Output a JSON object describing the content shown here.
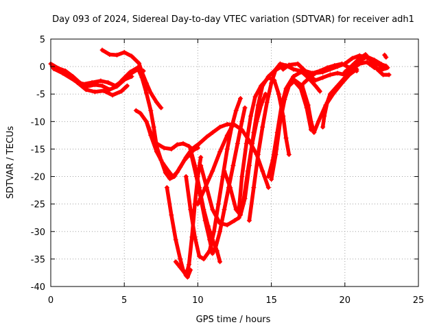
{
  "chart_data": {
    "type": "scatter",
    "title": "Day 093 of 2024, Sidereal Day-to-day VTEC variation (SDTVAR) for receiver adh1",
    "xlabel": "GPS time / hours",
    "ylabel": "SDTVAR / TECUs",
    "xlim": [
      0,
      25
    ],
    "ylim": [
      -40,
      5
    ],
    "xticks": [
      "0",
      "5",
      "10",
      "15",
      "20",
      "25"
    ],
    "yticks": [
      "5",
      "0",
      "-5",
      "-10",
      "-15",
      "-20",
      "-25",
      "-30",
      "-35",
      "-40"
    ],
    "grid": true,
    "marker": "+",
    "colors": {
      "series": "#ff0000",
      "grid": "#a0a0a0",
      "axis": "#000000"
    },
    "series": [
      {
        "points": [
          [
            0.0,
            0.5
          ],
          [
            0.5,
            -0.3
          ],
          [
            1.0,
            -0.8
          ],
          [
            1.5,
            -1.8
          ],
          [
            2.0,
            -3.0
          ],
          [
            2.5,
            -3.6
          ],
          [
            3.0,
            -3.3
          ],
          [
            3.5,
            -3.5
          ],
          [
            4.0,
            -4.2
          ],
          [
            4.5,
            -3.6
          ],
          [
            5.0,
            -2.4
          ],
          [
            5.5,
            -1.2
          ],
          [
            6.0,
            -0.4
          ],
          [
            6.3,
            -0.8
          ]
        ]
      },
      {
        "points": [
          [
            0.1,
            0.0
          ],
          [
            0.6,
            -0.6
          ],
          [
            1.2,
            -1.6
          ],
          [
            1.8,
            -2.9
          ],
          [
            2.4,
            -4.2
          ],
          [
            3.0,
            -4.6
          ],
          [
            3.6,
            -4.4
          ],
          [
            4.2,
            -5.2
          ],
          [
            4.8,
            -4.5
          ],
          [
            5.2,
            -3.5
          ]
        ]
      },
      {
        "points": [
          [
            0.2,
            -0.4
          ],
          [
            0.8,
            -1.2
          ],
          [
            1.6,
            -2.5
          ],
          [
            2.2,
            -3.2
          ],
          [
            2.8,
            -2.9
          ],
          [
            3.4,
            -2.6
          ],
          [
            3.9,
            -2.9
          ],
          [
            4.4,
            -3.5
          ],
          [
            4.9,
            -2.5
          ],
          [
            5.5,
            -1.8
          ]
        ]
      },
      {
        "points": [
          [
            3.5,
            3.0
          ],
          [
            4.0,
            2.2
          ],
          [
            4.5,
            2.1
          ],
          [
            5.0,
            2.6
          ],
          [
            5.5,
            1.9
          ],
          [
            6.0,
            0.6
          ],
          [
            6.2,
            -1.0
          ],
          [
            6.5,
            -3.0
          ],
          [
            6.8,
            -4.8
          ],
          [
            7.2,
            -6.5
          ],
          [
            7.5,
            -7.5
          ]
        ]
      },
      {
        "points": [
          [
            4.8,
            -2.6
          ],
          [
            5.4,
            -1.0
          ],
          [
            5.9,
            -0.2
          ],
          [
            6.2,
            -2.0
          ],
          [
            6.5,
            -4.8
          ],
          [
            6.8,
            -8.0
          ],
          [
            7.0,
            -11.0
          ],
          [
            7.2,
            -14.5
          ],
          [
            7.5,
            -17.0
          ],
          [
            7.8,
            -19.3
          ],
          [
            8.1,
            -20.4
          ],
          [
            8.4,
            -20.0
          ],
          [
            8.8,
            -18.3
          ],
          [
            9.2,
            -16.5
          ],
          [
            9.6,
            -15.0
          ],
          [
            10.0,
            -14.2
          ]
        ]
      },
      {
        "points": [
          [
            5.8,
            -8.0
          ],
          [
            6.1,
            -8.5
          ],
          [
            6.5,
            -10.0
          ],
          [
            6.8,
            -12.5
          ],
          [
            7.2,
            -15.5
          ],
          [
            7.6,
            -17.5
          ],
          [
            8.0,
            -19.0
          ],
          [
            8.3,
            -20.0
          ],
          [
            8.6,
            -19.2
          ],
          [
            9.1,
            -17.0
          ],
          [
            9.6,
            -15.5
          ],
          [
            10.1,
            -14.0
          ],
          [
            10.6,
            -12.8
          ],
          [
            11.0,
            -12.0
          ],
          [
            11.5,
            -11.0
          ],
          [
            12.0,
            -10.5
          ],
          [
            12.5,
            -10.6
          ],
          [
            13.0,
            -11.5
          ],
          [
            13.5,
            -13.5
          ],
          [
            14.0,
            -16.0
          ],
          [
            14.4,
            -19.0
          ],
          [
            14.8,
            -22.0
          ]
        ]
      },
      {
        "points": [
          [
            6.5,
            -10.0
          ],
          [
            6.8,
            -12.0
          ],
          [
            7.2,
            -14.0
          ],
          [
            7.7,
            -14.8
          ],
          [
            8.2,
            -15.0
          ],
          [
            8.6,
            -14.2
          ],
          [
            9.0,
            -14.0
          ],
          [
            9.4,
            -14.5
          ],
          [
            9.7,
            -15.2
          ],
          [
            10.0,
            -14.8
          ]
        ]
      },
      {
        "points": [
          [
            7.9,
            -22.0
          ],
          [
            8.2,
            -27.0
          ],
          [
            8.5,
            -31.5
          ],
          [
            8.8,
            -35.0
          ],
          [
            9.0,
            -37.0
          ],
          [
            9.2,
            -38.0
          ],
          [
            9.4,
            -36.0
          ],
          [
            9.6,
            -31.0
          ],
          [
            9.8,
            -25.0
          ],
          [
            10.0,
            -20.0
          ],
          [
            10.2,
            -16.5
          ]
        ]
      },
      {
        "points": [
          [
            8.5,
            -35.5
          ],
          [
            8.8,
            -36.5
          ],
          [
            9.1,
            -37.5
          ],
          [
            9.3,
            -38.3
          ],
          [
            9.5,
            -37.0
          ]
        ]
      },
      {
        "points": [
          [
            9.5,
            -15.0
          ],
          [
            9.8,
            -18.0
          ],
          [
            10.1,
            -22.0
          ],
          [
            10.4,
            -26.0
          ],
          [
            10.7,
            -29.0
          ],
          [
            11.0,
            -31.5
          ],
          [
            11.3,
            -33.5
          ],
          [
            11.5,
            -35.5
          ]
        ]
      },
      {
        "points": [
          [
            9.6,
            -16.5
          ],
          [
            9.9,
            -20.0
          ],
          [
            10.2,
            -24.0
          ],
          [
            10.5,
            -28.0
          ],
          [
            10.8,
            -31.5
          ],
          [
            11.0,
            -34.0
          ],
          [
            11.2,
            -33.0
          ],
          [
            11.5,
            -30.0
          ],
          [
            11.8,
            -26.0
          ],
          [
            12.1,
            -22.0
          ],
          [
            12.4,
            -18.0
          ],
          [
            12.7,
            -14.0
          ],
          [
            13.0,
            -10.0
          ],
          [
            13.2,
            -7.5
          ]
        ]
      },
      {
        "points": [
          [
            9.2,
            -20.0
          ],
          [
            9.5,
            -26.0
          ],
          [
            9.8,
            -31.0
          ],
          [
            10.1,
            -34.5
          ],
          [
            10.4,
            -35.0
          ],
          [
            10.8,
            -33.5
          ],
          [
            11.1,
            -30.0
          ],
          [
            11.4,
            -25.0
          ],
          [
            11.7,
            -20.0
          ],
          [
            12.0,
            -15.0
          ],
          [
            12.3,
            -11.0
          ],
          [
            12.6,
            -8.0
          ],
          [
            12.9,
            -5.8
          ]
        ]
      },
      {
        "points": [
          [
            10.0,
            -25.0
          ],
          [
            10.5,
            -22.0
          ],
          [
            11.0,
            -19.0
          ],
          [
            11.5,
            -15.5
          ],
          [
            12.0,
            -12.5
          ],
          [
            12.4,
            -10.5
          ]
        ]
      },
      {
        "points": [
          [
            10.2,
            -18.0
          ],
          [
            10.6,
            -22.0
          ],
          [
            11.0,
            -26.0
          ],
          [
            11.5,
            -28.5
          ],
          [
            12.0,
            -28.8
          ],
          [
            12.5,
            -28.0
          ],
          [
            12.8,
            -27.5
          ],
          [
            13.1,
            -24.5
          ],
          [
            13.4,
            -19.0
          ],
          [
            13.7,
            -14.0
          ],
          [
            14.0,
            -10.0
          ],
          [
            14.3,
            -7.0
          ],
          [
            14.6,
            -5.0
          ]
        ]
      },
      {
        "points": [
          [
            11.8,
            -19.0
          ],
          [
            12.2,
            -22.0
          ],
          [
            12.6,
            -26.0
          ],
          [
            12.9,
            -27.0
          ],
          [
            13.2,
            -24.0
          ],
          [
            13.5,
            -18.0
          ],
          [
            13.8,
            -12.0
          ],
          [
            14.1,
            -7.0
          ],
          [
            14.4,
            -3.5
          ],
          [
            14.8,
            -1.8
          ],
          [
            15.2,
            -0.8
          ],
          [
            15.7,
            0.0
          ],
          [
            16.2,
            0.2
          ]
        ]
      },
      {
        "points": [
          [
            12.8,
            -26.0
          ],
          [
            13.0,
            -20.0
          ],
          [
            13.3,
            -14.0
          ],
          [
            13.6,
            -9.0
          ],
          [
            13.9,
            -5.5
          ],
          [
            14.3,
            -3.5
          ],
          [
            14.8,
            -2.0
          ],
          [
            15.2,
            -2.5
          ],
          [
            15.5,
            -5.0
          ],
          [
            15.8,
            -9.0
          ],
          [
            16.0,
            -13.0
          ],
          [
            16.2,
            -16.0
          ]
        ]
      },
      {
        "points": [
          [
            13.5,
            -28.0
          ],
          [
            13.8,
            -22.0
          ],
          [
            14.1,
            -16.0
          ],
          [
            14.4,
            -11.0
          ],
          [
            14.7,
            -6.5
          ],
          [
            15.0,
            -3.0
          ],
          [
            15.3,
            -0.5
          ],
          [
            15.6,
            0.5
          ],
          [
            16.0,
            0.2
          ],
          [
            16.5,
            -0.5
          ],
          [
            17.0,
            -0.8
          ],
          [
            17.5,
            -2.0
          ],
          [
            18.0,
            -3.5
          ],
          [
            18.3,
            -4.5
          ]
        ]
      },
      {
        "points": [
          [
            14.8,
            -20.0
          ],
          [
            15.1,
            -17.0
          ],
          [
            15.4,
            -12.0
          ],
          [
            15.7,
            -7.0
          ],
          [
            16.0,
            -4.0
          ],
          [
            16.5,
            -1.8
          ],
          [
            17.0,
            -1.0
          ],
          [
            17.5,
            -1.5
          ],
          [
            18.0,
            -2.5
          ],
          [
            18.5,
            -2.0
          ],
          [
            19.0,
            -1.5
          ],
          [
            19.5,
            -1.2
          ],
          [
            20.0,
            -1.5
          ]
        ]
      },
      {
        "points": [
          [
            15.0,
            -20.5
          ],
          [
            15.3,
            -16.0
          ],
          [
            15.6,
            -10.0
          ],
          [
            15.9,
            -6.0
          ],
          [
            16.2,
            -3.5
          ],
          [
            16.6,
            -2.5
          ],
          [
            17.1,
            -3.5
          ],
          [
            17.5,
            -7.0
          ],
          [
            17.7,
            -10.0
          ],
          [
            17.9,
            -12.0
          ],
          [
            18.2,
            -10.0
          ],
          [
            18.7,
            -7.0
          ],
          [
            19.2,
            -5.0
          ],
          [
            19.8,
            -3.0
          ],
          [
            20.3,
            -1.5
          ],
          [
            20.8,
            -0.5
          ]
        ]
      },
      {
        "points": [
          [
            16.5,
            -2.5
          ],
          [
            17.0,
            -4.0
          ],
          [
            17.4,
            -7.5
          ],
          [
            17.7,
            -11.5
          ]
        ]
      },
      {
        "points": [
          [
            15.8,
            -0.5
          ],
          [
            16.2,
            0.3
          ],
          [
            16.8,
            0.5
          ],
          [
            17.3,
            -0.8
          ],
          [
            17.8,
            -1.2
          ],
          [
            18.3,
            -0.8
          ],
          [
            18.8,
            -0.2
          ],
          [
            19.3,
            0.2
          ],
          [
            19.8,
            0.5
          ],
          [
            20.3,
            -0.2
          ],
          [
            20.8,
            -0.8
          ]
        ]
      },
      {
        "points": [
          [
            17.2,
            -3.0
          ],
          [
            17.6,
            -2.0
          ],
          [
            18.0,
            -1.2
          ],
          [
            18.5,
            -1.0
          ],
          [
            19.0,
            -0.5
          ],
          [
            19.5,
            0.0
          ],
          [
            20.0,
            0.5
          ],
          [
            20.5,
            1.5
          ],
          [
            21.0,
            2.0
          ],
          [
            21.5,
            1.6
          ],
          [
            22.0,
            0.8
          ],
          [
            22.5,
            0.0
          ],
          [
            22.9,
            -0.2
          ]
        ]
      },
      {
        "points": [
          [
            18.5,
            -11.0
          ],
          [
            18.6,
            -9.0
          ],
          [
            18.8,
            -6.5
          ],
          [
            19.0,
            -5.0
          ],
          [
            19.5,
            -3.5
          ],
          [
            20.0,
            -2.0
          ],
          [
            20.5,
            -0.5
          ],
          [
            21.0,
            1.0
          ],
          [
            21.5,
            1.8
          ],
          [
            22.0,
            1.2
          ],
          [
            22.5,
            0.4
          ],
          [
            22.8,
            0.1
          ]
        ]
      },
      {
        "points": [
          [
            20.0,
            -1.0
          ],
          [
            20.5,
            0.2
          ],
          [
            21.0,
            1.5
          ],
          [
            21.4,
            2.2
          ],
          [
            21.8,
            1.0
          ],
          [
            22.2,
            -0.5
          ],
          [
            22.6,
            -1.5
          ],
          [
            23.0,
            -1.5
          ]
        ]
      },
      {
        "points": [
          [
            20.5,
            -0.5
          ],
          [
            21.0,
            0.5
          ],
          [
            21.5,
            0.8
          ],
          [
            22.0,
            -0.2
          ],
          [
            22.5,
            -0.6
          ],
          [
            22.8,
            -0.3
          ]
        ]
      },
      {
        "points": [
          [
            22.7,
            2.1
          ],
          [
            22.8,
            1.7
          ]
        ]
      }
    ]
  }
}
